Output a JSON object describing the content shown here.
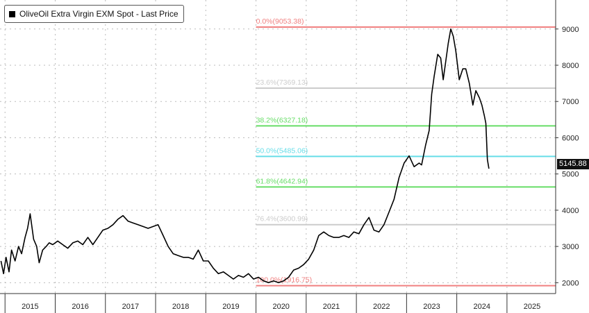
{
  "legend": {
    "label": "OliveOil Extra Virgin EXM Spot - Last Price",
    "color": "#000000"
  },
  "last_price_tag": "5145.88",
  "chart_data": {
    "type": "line",
    "title": "",
    "xlabel": "",
    "ylabel": "",
    "ylim": [
      1700,
      9800
    ],
    "xlim": [
      2014.9,
      2025.97
    ],
    "grid": true,
    "legend_position": "top-left",
    "x_tick_labels": [
      "2015",
      "2016",
      "2017",
      "2018",
      "2019",
      "2020",
      "2021",
      "2022",
      "2023",
      "2024",
      "2025"
    ],
    "y_ticks": [
      2000,
      3000,
      4000,
      5000,
      6000,
      7000,
      8000,
      9000
    ],
    "y_tick_labels": [
      "2000",
      "3000",
      "4000",
      "5000",
      "6000",
      "7000",
      "8000",
      "9000"
    ],
    "fib_levels": [
      {
        "label": "0.0%(9053.38)",
        "value": 9053.38,
        "color": "#f08080"
      },
      {
        "label": "23.6%(7369.13)",
        "value": 7369.13,
        "color": "#cccccc"
      },
      {
        "label": "38.2%(6327.18)",
        "value": 6327.18,
        "color": "#66dd66"
      },
      {
        "label": "50.0%(5485.06)",
        "value": 5485.06,
        "color": "#66dde8"
      },
      {
        "label": "61.8%(4642.94)",
        "value": 4642.94,
        "color": "#66dd66"
      },
      {
        "label": "76.4%(3600.99)",
        "value": 3600.99,
        "color": "#cccccc"
      },
      {
        "label": "100.0%(1916.75)",
        "value": 1916.75,
        "color": "#f08080"
      }
    ],
    "series": [
      {
        "color": "#000000",
        "x": [
          2014.92,
          2014.97,
          2015.02,
          2015.08,
          2015.13,
          2015.2,
          2015.27,
          2015.33,
          2015.4,
          2015.45,
          2015.5,
          2015.57,
          2015.63,
          2015.68,
          2015.75,
          2015.82,
          2015.88,
          2015.95,
          2016.05,
          2016.15,
          2016.25,
          2016.35,
          2016.45,
          2016.55,
          2016.65,
          2016.75,
          2016.85,
          2016.95,
          2017.05,
          2017.15,
          2017.25,
          2017.35,
          2017.45,
          2017.55,
          2017.65,
          2017.75,
          2017.85,
          2017.95,
          2018.05,
          2018.15,
          2018.25,
          2018.35,
          2018.45,
          2018.55,
          2018.65,
          2018.75,
          2018.85,
          2018.95,
          2019.05,
          2019.15,
          2019.25,
          2019.35,
          2019.45,
          2019.55,
          2019.65,
          2019.75,
          2019.85,
          2019.95,
          2020.05,
          2020.15,
          2020.25,
          2020.35,
          2020.45,
          2020.55,
          2020.65,
          2020.75,
          2020.85,
          2020.95,
          2021.05,
          2021.15,
          2021.25,
          2021.35,
          2021.45,
          2021.55,
          2021.65,
          2021.75,
          2021.85,
          2021.95,
          2022.05,
          2022.15,
          2022.25,
          2022.35,
          2022.45,
          2022.55,
          2022.65,
          2022.75,
          2022.85,
          2022.95,
          2023.05,
          2023.15,
          2023.25,
          2023.3,
          2023.38,
          2023.45,
          2023.5,
          2023.55,
          2023.62,
          2023.68,
          2023.73,
          2023.78,
          2023.83,
          2023.88,
          2023.93,
          2023.98,
          2024.05,
          2024.12,
          2024.18,
          2024.25,
          2024.32,
          2024.38,
          2024.45,
          2024.5,
          2024.55,
          2024.58,
          2024.61,
          2024.64
        ],
        "y": [
          2600,
          2250,
          2700,
          2300,
          2900,
          2600,
          3000,
          2800,
          3250,
          3500,
          3900,
          3200,
          3000,
          2550,
          2900,
          3000,
          3100,
          3050,
          3150,
          3050,
          2950,
          3100,
          3150,
          3050,
          3250,
          3050,
          3250,
          3450,
          3500,
          3600,
          3750,
          3850,
          3700,
          3650,
          3600,
          3550,
          3500,
          3550,
          3600,
          3300,
          3000,
          2800,
          2750,
          2700,
          2700,
          2650,
          2900,
          2600,
          2600,
          2400,
          2250,
          2300,
          2200,
          2100,
          2200,
          2150,
          2250,
          2100,
          2150,
          2050,
          2000,
          2050,
          2000,
          2050,
          2150,
          2350,
          2400,
          2500,
          2650,
          2900,
          3300,
          3400,
          3300,
          3250,
          3250,
          3300,
          3250,
          3400,
          3350,
          3600,
          3800,
          3450,
          3400,
          3600,
          3950,
          4300,
          4900,
          5300,
          5500,
          5200,
          5300,
          5250,
          5800,
          6200,
          7200,
          7700,
          8300,
          8200,
          7600,
          8100,
          8600,
          9000,
          8800,
          8400,
          7600,
          7900,
          7900,
          7500,
          6900,
          7300,
          7100,
          6900,
          6600,
          6400,
          5400,
          5145.88
        ]
      }
    ]
  }
}
